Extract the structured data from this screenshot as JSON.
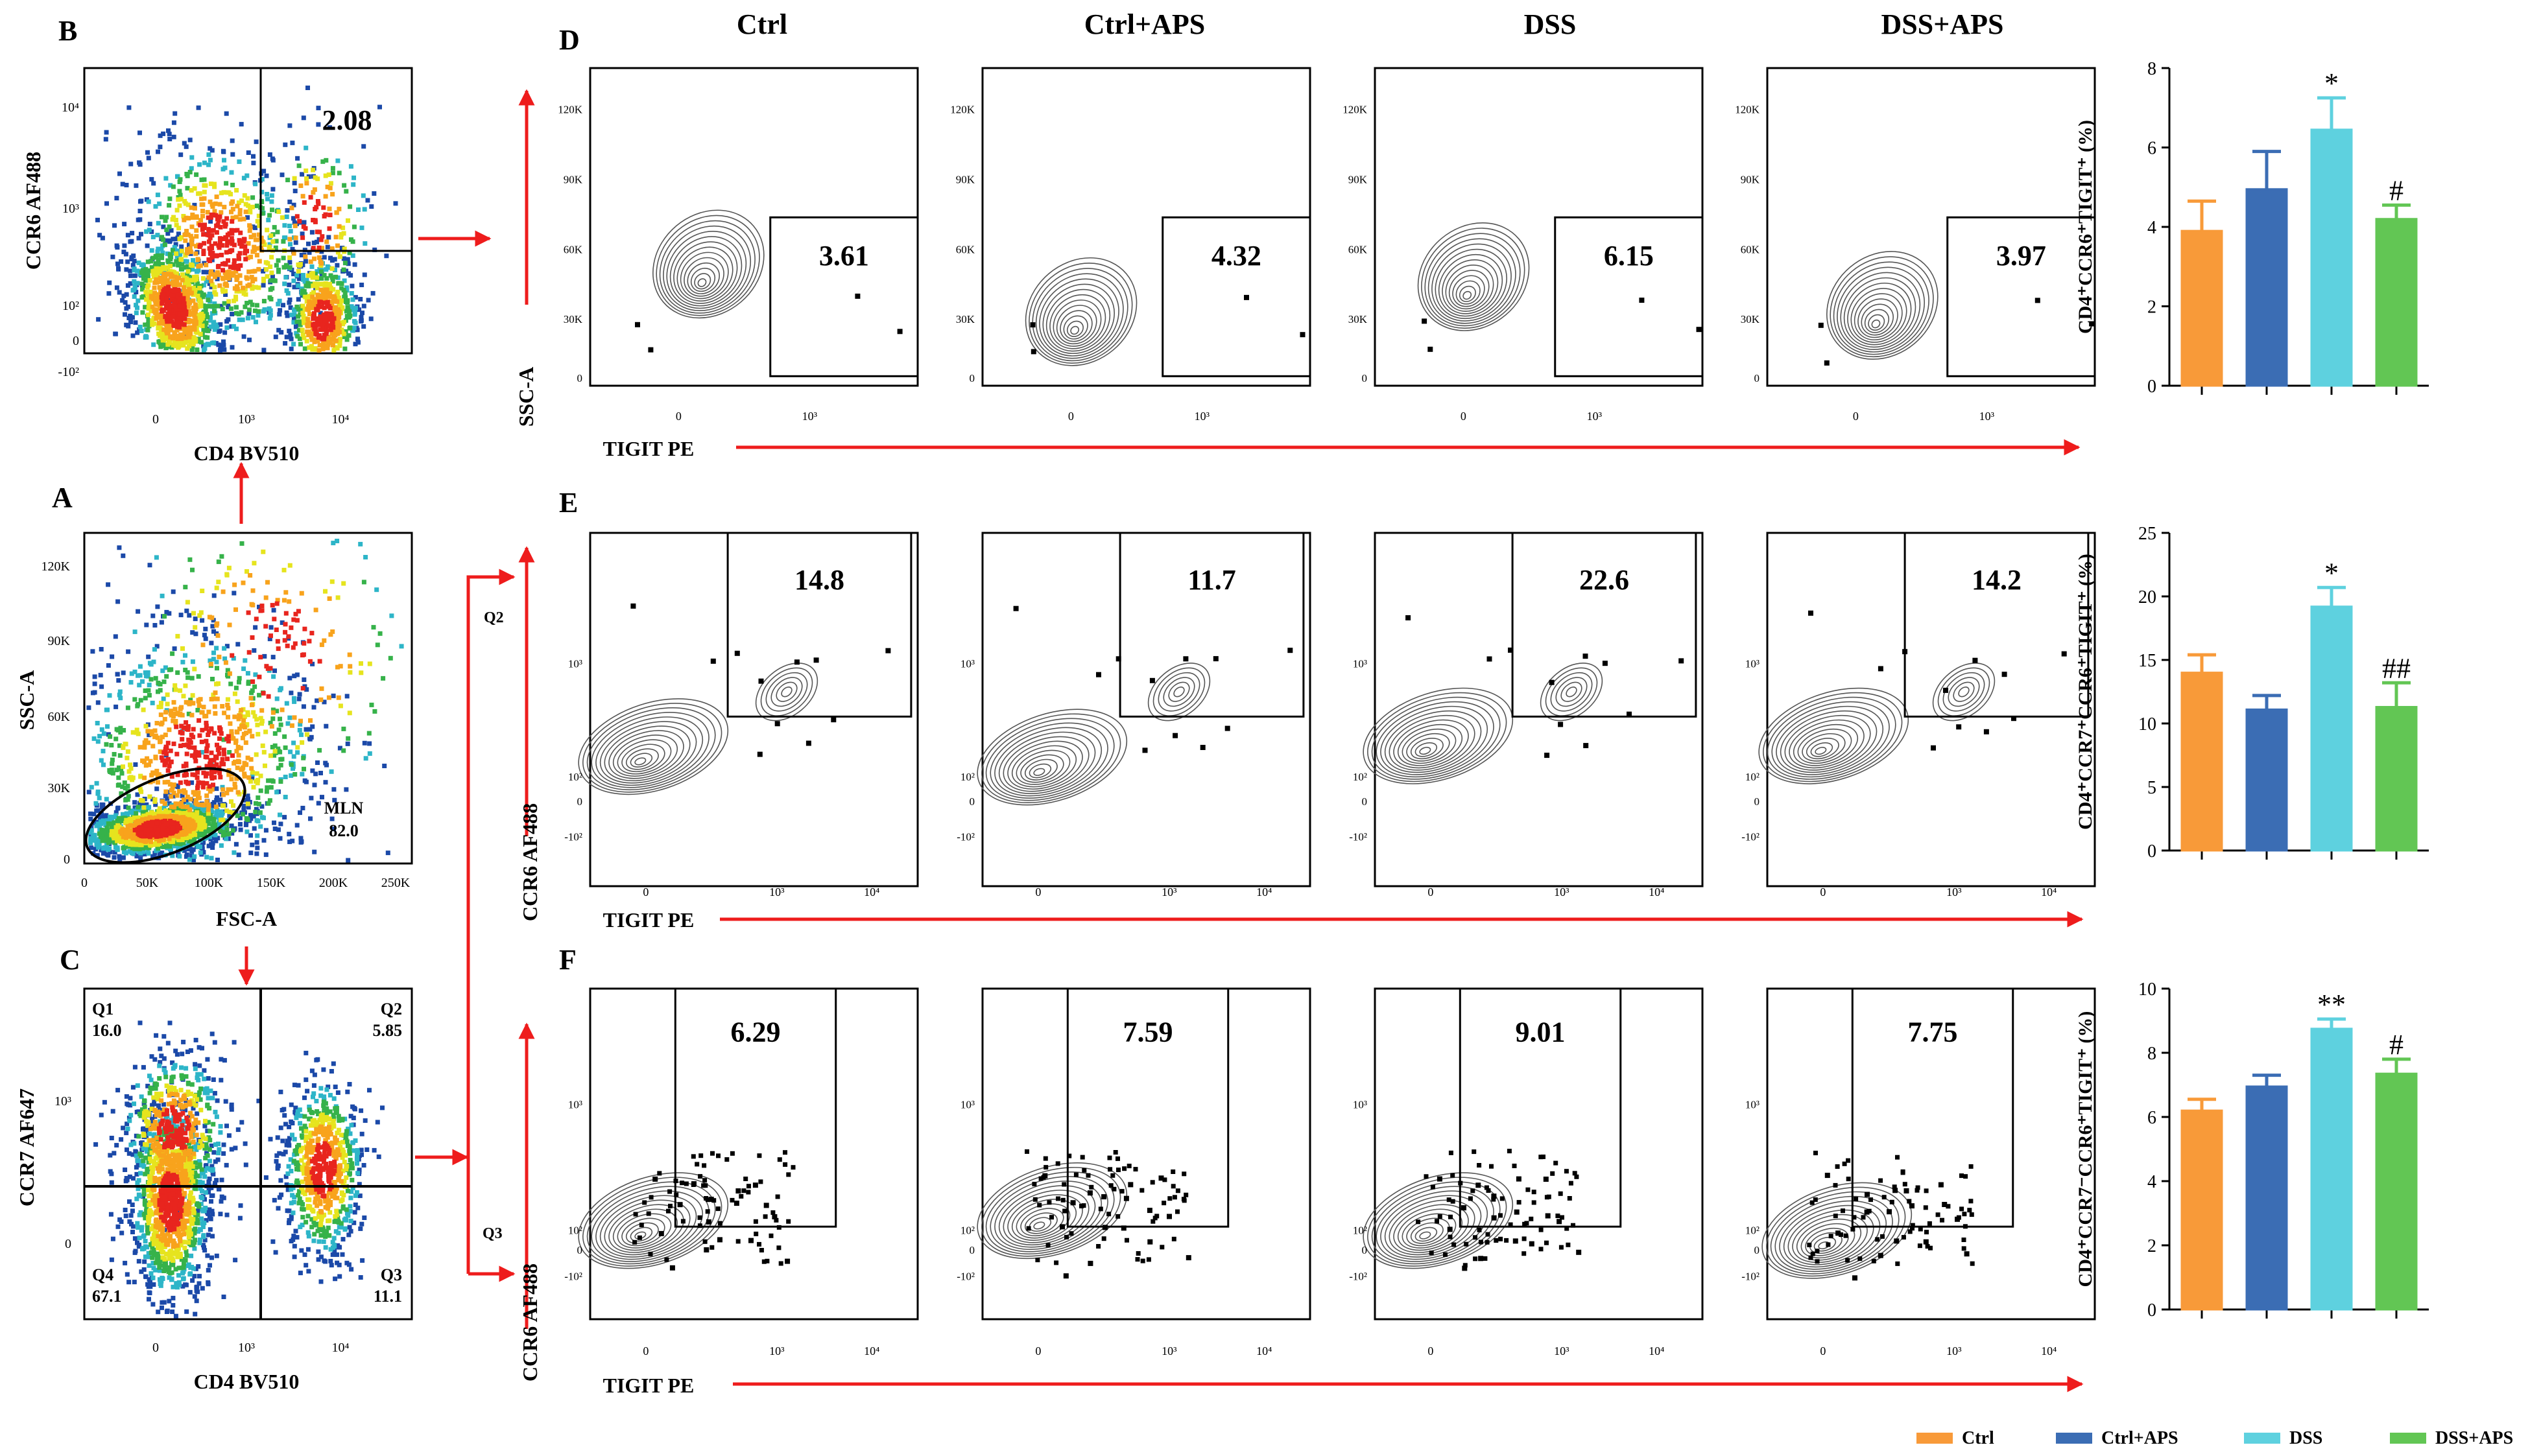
{
  "panel_letters": {
    "A": "A",
    "B": "B",
    "C": "C",
    "D": "D",
    "E": "E",
    "F": "F"
  },
  "colors": {
    "ctrl": "#F89A39",
    "ctrl_aps": "#3B6DB4",
    "dss": "#5ED1DF",
    "dss_aps": "#62C654",
    "arrow": "#EE1C1C",
    "gate": "#000000"
  },
  "column_titles": [
    "Ctrl",
    "Ctrl+APS",
    "DSS",
    "DSS+APS"
  ],
  "panel_A": {
    "xlabel": "FSC-A",
    "ylabel": "SSC-A",
    "xticks": [
      "0",
      "50K",
      "100K",
      "150K",
      "200K",
      "250K"
    ],
    "yticks": [
      "0",
      "30K",
      "60K",
      "90K",
      "120K"
    ],
    "gate_name": "MLN",
    "gate_value": "82.0"
  },
  "panel_B": {
    "xlabel": "CD4 BV510",
    "ylabel": "CCR6 AF488",
    "xticks": [
      "0",
      "10³",
      "10⁴"
    ],
    "yticks": [
      "-10²",
      "0",
      "10²",
      "10³",
      "10⁴"
    ],
    "gate_value": "2.08"
  },
  "panel_C": {
    "xlabel": "CD4 BV510",
    "ylabel": "CCR7 AF647",
    "xticks": [
      "0",
      "10³",
      "10⁴"
    ],
    "yticks": [
      "0",
      "10³"
    ],
    "q1_name": "Q1",
    "q1_value": "16.0",
    "q2_name": "Q2",
    "q2_value": "5.85",
    "q3_name": "Q3",
    "q3_value": "11.1",
    "q4_name": "Q4",
    "q4_value": "67.1"
  },
  "arrow_labels": {
    "q2": "Q2",
    "q3": "Q3"
  },
  "row_D": {
    "xlabel": "TIGIT PE",
    "ylabel": "SSC-A",
    "xticks": [
      "0",
      "10³"
    ],
    "yticks": [
      "0",
      "30K",
      "60K",
      "90K",
      "120K"
    ],
    "values": [
      "3.61",
      "4.32",
      "6.15",
      "3.97"
    ]
  },
  "row_E": {
    "xlabel": "TIGIT PE",
    "ylabel": "CCR6 AF488",
    "xticks": [
      "0",
      "10³",
      "10⁴"
    ],
    "yticks": [
      "-10²",
      "0",
      "10²",
      "10³"
    ],
    "values": [
      "14.8",
      "11.7",
      "22.6",
      "14.2"
    ]
  },
  "row_F": {
    "xlabel": "TIGIT PE",
    "ylabel": "CCR6 AF488",
    "xticks": [
      "0",
      "10³",
      "10⁴"
    ],
    "yticks": [
      "-10²",
      "0",
      "10²",
      "10³"
    ],
    "values": [
      "6.29",
      "7.59",
      "9.01",
      "7.75"
    ]
  },
  "legend": [
    "Ctrl",
    "Ctrl+APS",
    "DSS",
    "DSS+APS"
  ],
  "chart_data": [
    {
      "type": "bar",
      "panel": "D",
      "categories": [
        "Ctrl",
        "Ctrl+APS",
        "DSS",
        "DSS+APS"
      ],
      "values": [
        3.9,
        4.95,
        6.45,
        4.2
      ],
      "errors": [
        0.75,
        0.95,
        0.8,
        0.35
      ],
      "annotations": [
        "",
        "",
        "*",
        "#"
      ],
      "ylabel": "CD4⁺CCR6⁺TIGIT⁺ (%)",
      "ylim": [
        0,
        8
      ],
      "yticks": [
        "0",
        "2",
        "4",
        "6",
        "8"
      ]
    },
    {
      "type": "bar",
      "panel": "E",
      "categories": [
        "Ctrl",
        "Ctrl+APS",
        "DSS",
        "DSS+APS"
      ],
      "values": [
        14.0,
        11.1,
        19.2,
        11.3
      ],
      "errors": [
        1.4,
        1.1,
        1.5,
        1.9
      ],
      "annotations": [
        "",
        "",
        "*",
        "##"
      ],
      "ylabel": "CD4⁺CCR7⁺CCR6⁺TIGIT⁺ (%)",
      "ylim": [
        0,
        25
      ],
      "yticks": [
        "0",
        "5",
        "10",
        "15",
        "20",
        "25"
      ]
    },
    {
      "type": "bar",
      "panel": "F",
      "categories": [
        "Ctrl",
        "Ctrl+APS",
        "DSS",
        "DSS+APS"
      ],
      "values": [
        6.2,
        6.95,
        8.75,
        7.35
      ],
      "errors": [
        0.35,
        0.35,
        0.3,
        0.45
      ],
      "annotations": [
        "",
        "",
        "**",
        "#"
      ],
      "ylabel": "CD4⁺CCR7⁻CCR6⁺TIGIT⁺ (%)",
      "ylim": [
        0,
        10
      ],
      "yticks": [
        "0",
        "2",
        "4",
        "6",
        "8",
        "10"
      ]
    }
  ]
}
